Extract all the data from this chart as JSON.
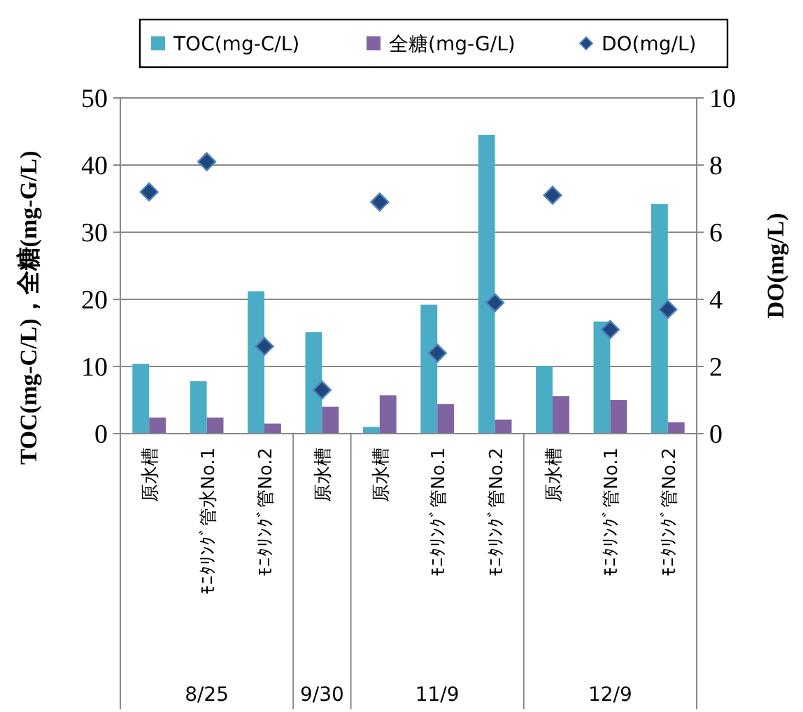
{
  "chart_data": {
    "type": "bar",
    "ylabel": "TOC(mg-C/L)，全糖(mg-G/L)",
    "y2label": "DO(mg/L)",
    "categories": [
      "原水槽",
      "ﾓﾆﾀﾘﾝｸﾞ管水No.1",
      "ﾓﾆﾀﾘﾝｸﾞ管No.2",
      "原水槽",
      "原水槽",
      "ﾓﾆﾀﾘﾝｸﾞ管No.1",
      "ﾓﾆﾀﾘﾝｸﾞ管No.2",
      "原水槽",
      "ﾓﾆﾀﾘﾝｸﾞ管No.1",
      "ﾓﾆﾀﾘﾝｸﾞ管No.2"
    ],
    "series": [
      {
        "name": "TOC(mg-C/L)",
        "color": "#4bacc6",
        "values": [
          10.4,
          7.8,
          21.2,
          15.1,
          1.0,
          19.2,
          44.5,
          10.1,
          16.7,
          34.2
        ]
      },
      {
        "name": "全糖(mg-G/L)",
        "color": "#8064a2",
        "values": [
          2.4,
          2.4,
          1.5,
          4.0,
          5.7,
          4.4,
          2.1,
          5.6,
          5.0,
          1.7
        ]
      },
      {
        "name": "DO(mg/L)",
        "type": "scatter",
        "axis": "y2",
        "marker": "diamond",
        "color": "#1f497d",
        "values": [
          7.2,
          8.1,
          2.6,
          1.3,
          6.9,
          2.4,
          3.9,
          7.1,
          3.1,
          3.7
        ]
      }
    ],
    "annotations": [
      "8/25",
      "9/30",
      "11/9",
      "12/9"
    ],
    "ylim": [
      0,
      50
    ],
    "yticks": [
      0,
      10,
      20,
      30,
      40,
      50
    ],
    "y2lim": [
      0,
      10
    ],
    "y2ticks": [
      0,
      2,
      4,
      6,
      8,
      10
    ],
    "grid": "y",
    "legend": "top"
  }
}
